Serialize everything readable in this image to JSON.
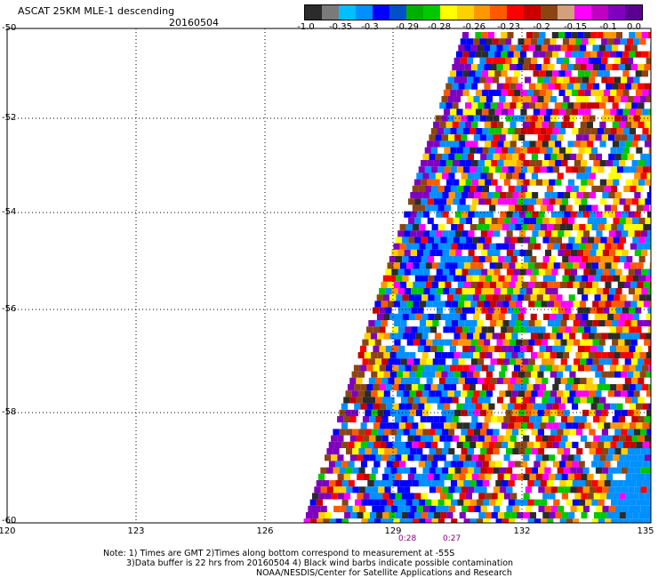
{
  "header": {
    "title": "ASCAT 25KM MLE-1 descending",
    "date": "20160504"
  },
  "colorbar": {
    "colors": [
      "#2b2b2b",
      "#7a7a7a",
      "#00bfff",
      "#0090ff",
      "#0000ff",
      "#0050c8",
      "#00b000",
      "#00c800",
      "#ffff00",
      "#ffd000",
      "#ff9800",
      "#ff5a00",
      "#ff0000",
      "#c80000",
      "#8b4513",
      "#d2a07a",
      "#ff00ff",
      "#c000c0",
      "#8000c0",
      "#5a0090"
    ],
    "labels": [
      "-1.0",
      "-0.35",
      "-0.3",
      "-0.29",
      "-0.28",
      "-0.26",
      "-0.23",
      "-0.2",
      "-0.15",
      "-0.1",
      "0.0"
    ]
  },
  "map": {
    "lat_labels": [
      "-50",
      "-52",
      "-54",
      "-56",
      "-58",
      "-60"
    ],
    "lon_labels": [
      "120",
      "123",
      "126",
      "129",
      "132",
      "135"
    ],
    "time_labels": [
      "0:28",
      "0:27"
    ],
    "palette": [
      "#ffffff",
      "#ffffff",
      "#ffffff",
      "#0090ff",
      "#0090ff",
      "#0000ff",
      "#ffff00",
      "#ffd000",
      "#ff9800",
      "#ff0000",
      "#ff5a00",
      "#00c800",
      "#8b4513",
      "#ff00ff",
      "#8000c0",
      "#2b2b2b",
      "#c80000"
    ]
  },
  "footer": {
    "line1": "Note: 1) Times are GMT 2)Times along bottom correspond to measurement at -55S",
    "line2": "3)Data buffer is 22 hrs from 20160504 4) Black wind barbs indicate possible contamination",
    "line3": "NOAA/NESDIS/Center for Satellite Applications and Research"
  }
}
